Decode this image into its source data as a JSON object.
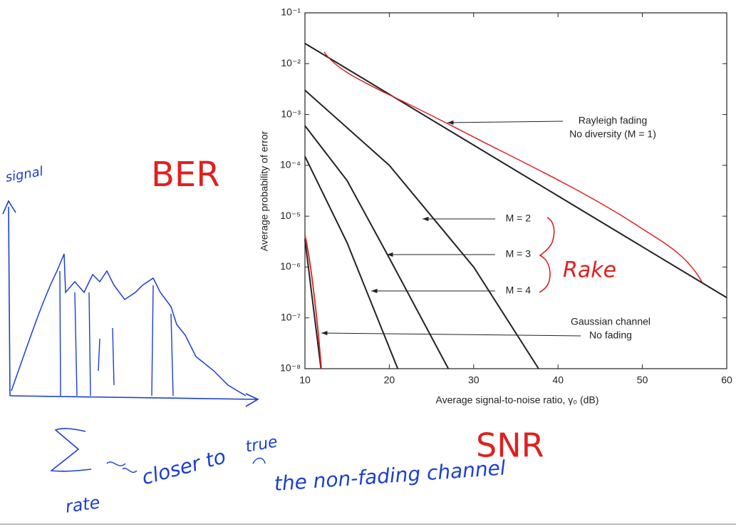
{
  "chart_data": {
    "type": "line",
    "ylabel": "Average probability of error",
    "xlabel": "Average signal-to-noise ratio, γ₀ (dB)",
    "xlim": [
      10,
      60
    ],
    "xticks": [
      10,
      20,
      30,
      40,
      50,
      60
    ],
    "log_y": true,
    "ylim": [
      1e-08,
      0.1
    ],
    "yticks": [
      {
        "value": 1e-08,
        "label": "10⁻⁸"
      },
      {
        "value": 1e-07,
        "label": "10⁻⁷"
      },
      {
        "value": 1e-06,
        "label": "10⁻⁶"
      },
      {
        "value": 1e-05,
        "label": "10⁻⁵"
      },
      {
        "value": 0.0001,
        "label": "10⁻⁴"
      },
      {
        "value": 0.001,
        "label": "10⁻³"
      },
      {
        "value": 0.01,
        "label": "10⁻²"
      },
      {
        "value": 0.1,
        "label": "10⁻¹"
      }
    ],
    "series": [
      {
        "label_lines": [
          "Rayleigh fading",
          "No diversity (M = 1)"
        ],
        "color": "#222",
        "x": [
          10,
          20,
          30,
          40,
          50,
          60
        ],
        "values": [
          0.025,
          0.0025,
          0.00025,
          2.5e-05,
          2.5e-06,
          2.5e-07
        ]
      },
      {
        "label_lines": [
          "M = 2"
        ],
        "color": "#222",
        "x": [
          10,
          20,
          30,
          37.7
        ],
        "values": [
          0.003,
          0.0001,
          1e-06,
          1e-08
        ]
      },
      {
        "label_lines": [
          "M = 3"
        ],
        "color": "#222",
        "x": [
          10,
          15,
          20,
          27
        ],
        "values": [
          0.0006,
          5e-05,
          1.5e-06,
          1e-08
        ]
      },
      {
        "label_lines": [
          "M = 4"
        ],
        "color": "#222",
        "x": [
          10,
          15,
          21
        ],
        "values": [
          0.00015,
          3e-06,
          1e-08
        ]
      },
      {
        "label_lines": [
          "Gaussian channel",
          "No fading"
        ],
        "color": "#222",
        "x": [
          10,
          11.9
        ],
        "values": [
          3.5e-06,
          1e-08
        ]
      }
    ]
  },
  "handwriting": {
    "ber": "BER",
    "snr": "SNR",
    "rake_right": "Rake",
    "signal": "signal",
    "rake_left": "rate",
    "closer": "closer to",
    "true": "true",
    "channel": "the non-fading channel"
  }
}
